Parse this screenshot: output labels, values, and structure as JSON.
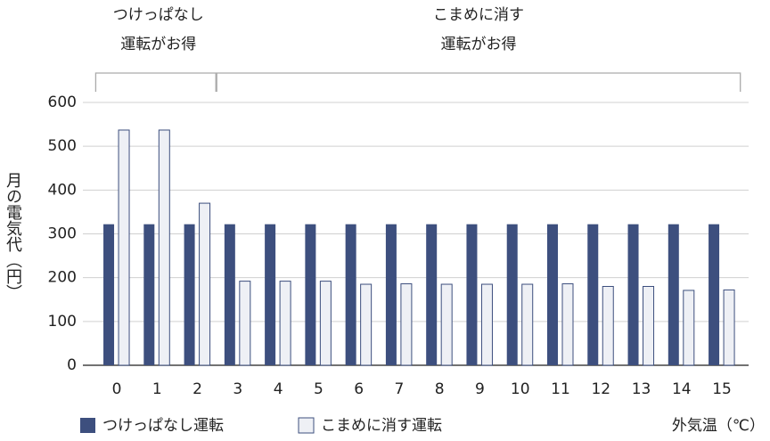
{
  "chart_data": {
    "type": "bar",
    "x_label": "外気温（℃）",
    "y_label": "月の電気代（円）",
    "annotations": [
      [
        "つけっぱなし",
        "運転がお得"
      ],
      [
        "こまめに消す",
        "運転がお得"
      ]
    ],
    "categories": [
      "0",
      "1",
      "2",
      "3",
      "4",
      "5",
      "6",
      "7",
      "8",
      "9",
      "10",
      "11",
      "12",
      "13",
      "14",
      "15"
    ],
    "series": [
      {
        "name": "つけっぱなし運転",
        "color": "#3d4f7e",
        "values": [
          322,
          322,
          322,
          322,
          322,
          322,
          322,
          322,
          322,
          322,
          322,
          322,
          322,
          322,
          322,
          322
        ]
      },
      {
        "name": "こまめに消す運転",
        "color": "#eef0f5",
        "values": [
          537,
          537,
          370,
          192,
          192,
          192,
          185,
          186,
          185,
          185,
          185,
          186,
          180,
          180,
          171,
          172
        ]
      }
    ],
    "ylim": [
      0,
      600
    ],
    "yticks": [
      0,
      100,
      200,
      300,
      400,
      500,
      600
    ],
    "grid": true
  }
}
